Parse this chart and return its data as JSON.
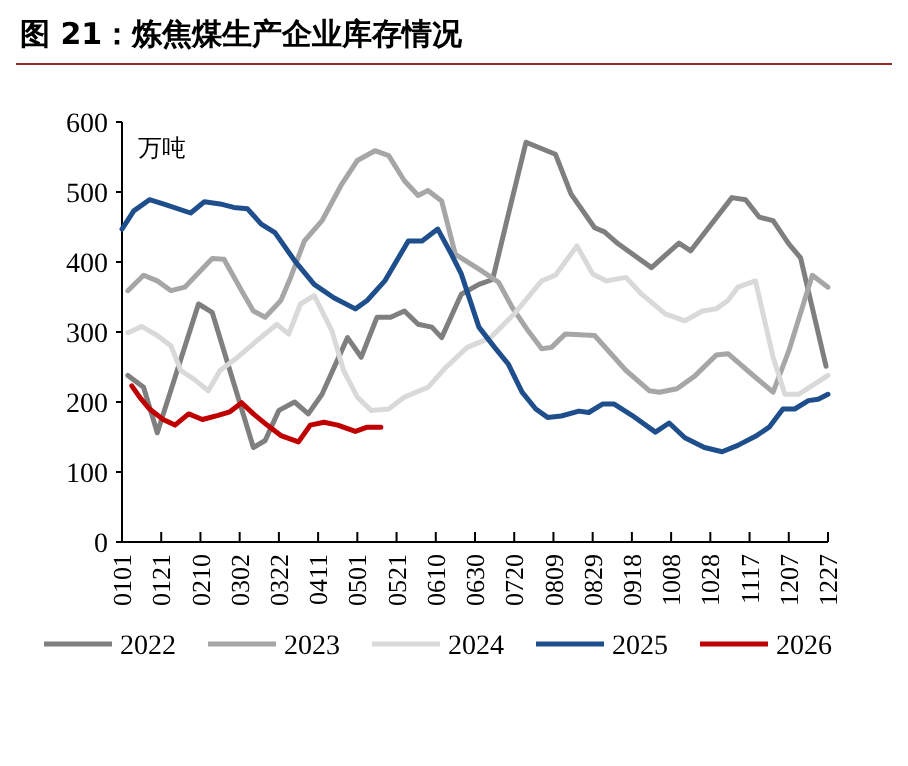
{
  "chart_data": {
    "type": "line",
    "title": "图 21：炼焦煤生产企业库存情况",
    "ylabel": "万吨",
    "xlim": [
      "--01-01",
      "--12-27"
    ],
    "xticks": [
      {
        "value": "--01-01",
        "label": "0101"
      },
      {
        "value": "--01-21",
        "label": "0121"
      },
      {
        "value": "--02-10",
        "label": "0210"
      },
      {
        "value": "--03-02",
        "label": "0302"
      },
      {
        "value": "--03-22",
        "label": "0322"
      },
      {
        "value": "--04-11",
        "label": "0411"
      },
      {
        "value": "--05-01",
        "label": "0501"
      },
      {
        "value": "--05-21",
        "label": "0521"
      },
      {
        "value": "--06-10",
        "label": "0610"
      },
      {
        "value": "--06-30",
        "label": "0630"
      },
      {
        "value": "--07-20",
        "label": "0720"
      },
      {
        "value": "--08-09",
        "label": "0809"
      },
      {
        "value": "--08-29",
        "label": "0829"
      },
      {
        "value": "--09-18",
        "label": "0918"
      },
      {
        "value": "--10-08",
        "label": "1008"
      },
      {
        "value": "--10-28",
        "label": "1028"
      },
      {
        "value": "--11-17",
        "label": "1117"
      },
      {
        "value": "--12-07",
        "label": "1207"
      },
      {
        "value": "--12-27",
        "label": "1227"
      }
    ],
    "ylim": [
      0,
      600
    ],
    "yticks": [
      0,
      100,
      200,
      300,
      400,
      500,
      600
    ],
    "grid": false,
    "legend": "bottom",
    "marker": "none",
    "line_style": "solid",
    "series": [
      {
        "name": "2022",
        "color": "#7f7f7f",
        "x": [
          "--01-04",
          "--01-12",
          "--01-19",
          "--02-09",
          "--02-16",
          "--03-09",
          "--03-15",
          "--03-22",
          "--03-30",
          "--04-06",
          "--04-13",
          "--04-26",
          "--05-03",
          "--05-11",
          "--05-18",
          "--05-25",
          "--06-01",
          "--06-08",
          "--06-13",
          "--06-23",
          "--07-02",
          "--07-09",
          "--07-17",
          "--07-26",
          "--08-10",
          "--08-18",
          "--08-30",
          "--09-04",
          "--09-11",
          "--09-28",
          "--10-12",
          "--10-18",
          "--11-08",
          "--11-15",
          "--11-22",
          "--11-29",
          "--12-07",
          "--12-13",
          "--12-26"
        ],
        "values": [
          238,
          221,
          156,
          340,
          328,
          135,
          145,
          188,
          200,
          183,
          211,
          292,
          264,
          321,
          321,
          330,
          311,
          307,
          292,
          354,
          368,
          375,
          468,
          571,
          554,
          497,
          449,
          443,
          426,
          392,
          427,
          416,
          492,
          489,
          464,
          459,
          426,
          406,
          251
        ]
      },
      {
        "name": "2023",
        "color": "#a6a6a6",
        "x": [
          "--01-04",
          "--01-12",
          "--01-19",
          "--01-26",
          "--02-02",
          "--02-16",
          "--02-22",
          "--03-03",
          "--03-09",
          "--03-15",
          "--03-23",
          "--03-28",
          "--04-04",
          "--04-13",
          "--04-23",
          "--05-01",
          "--05-10",
          "--05-17",
          "--05-25",
          "--06-01",
          "--06-06",
          "--06-13",
          "--06-20",
          "--07-03",
          "--07-12",
          "--07-19",
          "--07-27",
          "--08-03",
          "--08-08",
          "--08-15",
          "--08-30",
          "--09-15",
          "--09-27",
          "--10-02",
          "--10-11",
          "--10-20",
          "--10-31",
          "--11-06",
          "--11-18",
          "--11-29",
          "--12-07",
          "--12-19",
          "--12-27"
        ],
        "values": [
          359,
          381,
          373,
          359,
          364,
          405,
          404,
          359,
          330,
          321,
          345,
          378,
          430,
          459,
          511,
          545,
          559,
          552,
          516,
          495,
          502,
          487,
          411,
          388,
          371,
          335,
          302,
          276,
          278,
          297,
          295,
          245,
          216,
          214,
          219,
          237,
          267,
          269,
          240,
          214,
          273,
          381,
          364
        ]
      },
      {
        "name": "2024",
        "color": "#d9d9d9",
        "x": [
          "--01-04",
          "--01-11",
          "--01-19",
          "--01-26",
          "--01-31",
          "--02-07",
          "--02-14",
          "--02-20",
          "--03-01",
          "--03-11",
          "--03-21",
          "--03-27",
          "--04-02",
          "--04-09",
          "--04-18",
          "--04-24",
          "--05-01",
          "--05-08",
          "--05-17",
          "--05-25",
          "--06-06",
          "--06-15",
          "--06-26",
          "--07-08",
          "--07-20",
          "--08-03",
          "--08-10",
          "--08-21",
          "--08-29",
          "--09-05",
          "--09-15",
          "--09-23",
          "--10-05",
          "--10-15",
          "--10-24",
          "--10-31",
          "--11-06",
          "--11-11",
          "--11-20",
          "--11-29",
          "--12-05",
          "--12-12",
          "--12-27"
        ],
        "values": [
          299,
          308,
          295,
          280,
          245,
          232,
          216,
          245,
          264,
          288,
          311,
          297,
          340,
          352,
          302,
          245,
          207,
          188,
          190,
          207,
          221,
          249,
          278,
          292,
          326,
          373,
          381,
          423,
          383,
          373,
          378,
          354,
          326,
          316,
          330,
          333,
          345,
          364,
          373,
          264,
          211,
          211,
          238
        ]
      },
      {
        "name": "2025",
        "color": "#1f4e8c",
        "x": [
          "--01-01",
          "--01-07",
          "--01-15",
          "--01-22",
          "--02-05",
          "--02-12",
          "--02-20",
          "--02-27",
          "--03-06",
          "--03-13",
          "--03-20",
          "--03-30",
          "--04-09",
          "--04-19",
          "--04-30",
          "--05-06",
          "--05-15",
          "--05-27",
          "--06-03",
          "--06-11",
          "--06-18",
          "--06-23",
          "--07-02",
          "--07-10",
          "--07-17",
          "--07-24",
          "--07-31",
          "--08-06",
          "--08-13",
          "--08-22",
          "--08-27",
          "--09-03",
          "--09-09",
          "--09-18",
          "--09-30",
          "--10-07",
          "--10-15",
          "--10-25",
          "--11-03",
          "--11-11",
          "--11-20",
          "--11-27",
          "--12-04",
          "--12-10",
          "--12-17",
          "--12-22",
          "--12-27"
        ],
        "values": [
          447,
          473,
          489,
          483,
          470,
          486,
          483,
          478,
          476,
          454,
          442,
          402,
          368,
          349,
          333,
          345,
          373,
          430,
          430,
          447,
          411,
          383,
          307,
          278,
          254,
          214,
          190,
          178,
          180,
          187,
          185,
          197,
          197,
          181,
          157,
          170,
          149,
          135,
          129,
          138,
          151,
          164,
          190,
          190,
          202,
          204,
          211
        ]
      },
      {
        "name": "2026",
        "color": "#c00000",
        "x": [
          "--01-06",
          "--01-10",
          "--01-15",
          "--01-22",
          "--01-28",
          "--02-04",
          "--02-11",
          "--02-19",
          "--02-25",
          "--03-03",
          "--03-09",
          "--03-16",
          "--03-23",
          "--04-01",
          "--04-07",
          "--04-14",
          "--04-21",
          "--04-30",
          "--05-06",
          "--05-13"
        ],
        "values": [
          223,
          207,
          190,
          175,
          167,
          183,
          175,
          181,
          186,
          199,
          183,
          167,
          152,
          143,
          167,
          171,
          167,
          158,
          164,
          164
        ]
      }
    ]
  }
}
